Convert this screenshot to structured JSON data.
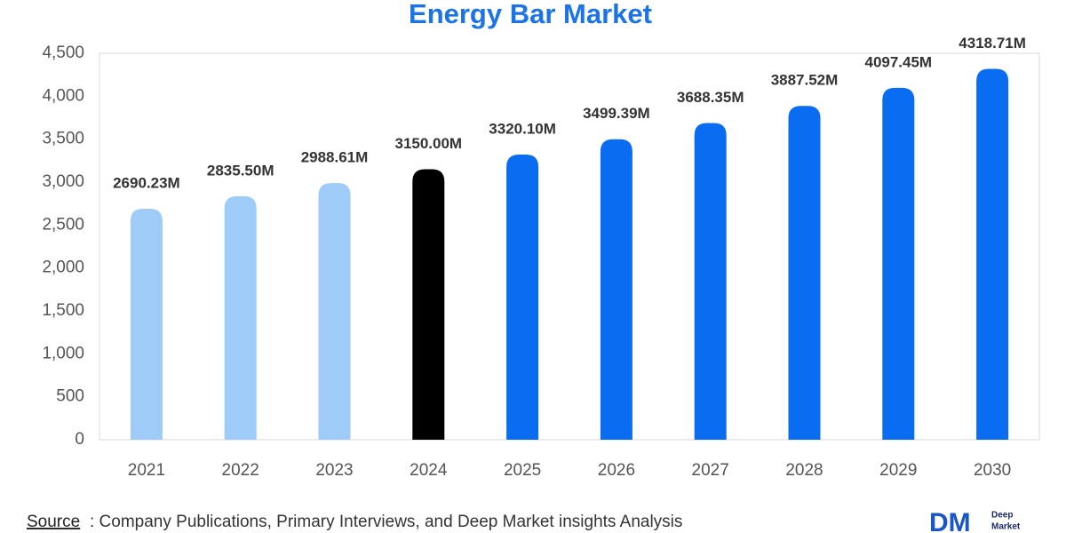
{
  "chart_data": {
    "type": "bar",
    "title": "Energy Bar Market",
    "categories": [
      "2021",
      "2022",
      "2023",
      "2024",
      "2025",
      "2026",
      "2027",
      "2028",
      "2029",
      "2030"
    ],
    "values": [
      2690.23,
      2835.5,
      2988.61,
      3150.0,
      3320.1,
      3499.39,
      3688.35,
      3887.52,
      4097.45,
      4318.71
    ],
    "value_labels": [
      "2690.23M",
      "2835.50M",
      "2988.61M",
      "3150.00M",
      "3320.10M",
      "3499.39M",
      "3688.35M",
      "3887.52M",
      "4097.45M",
      "4318.71M"
    ],
    "colors": [
      "#9ecbf7",
      "#9ecbf7",
      "#9ecbf7",
      "#000000",
      "#0a6cf0",
      "#0a6cf0",
      "#0a6cf0",
      "#0a6cf0",
      "#0a6cf0",
      "#0a6cf0"
    ],
    "ylim": [
      0,
      4500
    ],
    "yticks": [
      0,
      500,
      {
        "value": 1000,
        "label": "1,000"
      },
      {
        "value": 1500,
        "label": "1,500"
      },
      {
        "value": 2000,
        "label": "2,000"
      },
      {
        "value": 2500,
        "label": "2,500"
      },
      {
        "value": 3000,
        "label": "3,000"
      },
      {
        "value": 3500,
        "label": "3,500"
      },
      {
        "value": 4000,
        "label": "4,000"
      },
      {
        "value": 4500,
        "label": "4,500"
      }
    ],
    "grid": false
  },
  "footer": {
    "source_label": "Source",
    "source_text": ": Company Publications, Primary Interviews, and Deep Market insights Analysis",
    "logo_mark": "DM",
    "logo_line_1": "Deep",
    "logo_line_2": "Market"
  }
}
